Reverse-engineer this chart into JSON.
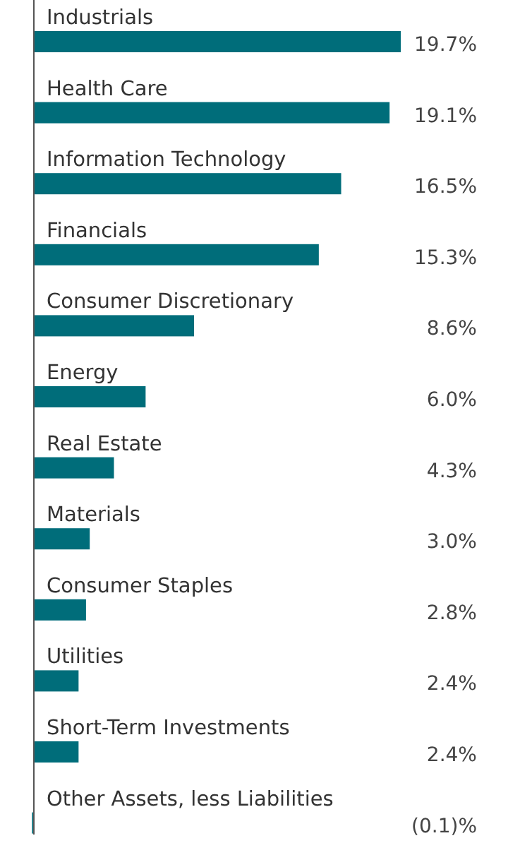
{
  "chart_data": {
    "type": "bar",
    "orientation": "horizontal",
    "categories": [
      "Industrials",
      "Health Care",
      "Information Technology",
      "Financials",
      "Consumer Discretionary",
      "Energy",
      "Real Estate",
      "Materials",
      "Consumer Staples",
      "Utilities",
      "Short-Term Investments",
      "Other Assets, less Liabilities"
    ],
    "values": [
      19.7,
      19.1,
      16.5,
      15.3,
      8.6,
      6.0,
      4.3,
      3.0,
      2.8,
      2.4,
      2.4,
      -0.1
    ],
    "value_labels": [
      "19.7%",
      "19.1%",
      "16.5%",
      "15.3%",
      "8.6%",
      "6.0%",
      "4.3%",
      "3.0%",
      "2.8%",
      "2.4%",
      "2.4%",
      "(0.1)%"
    ],
    "color": "#006d7a"
  }
}
